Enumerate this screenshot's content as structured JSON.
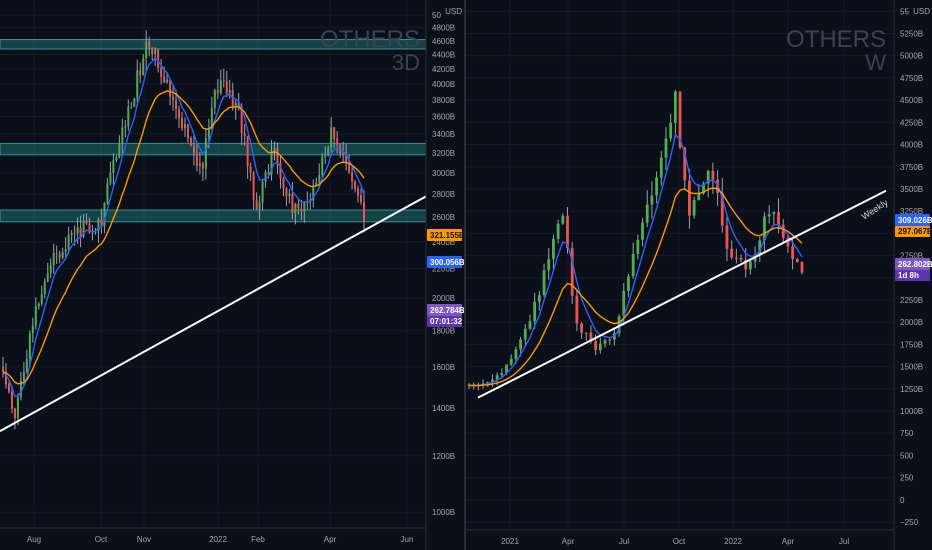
{
  "chart_data": [
    {
      "type": "candlestick",
      "symbol": "OTHERS",
      "interval": "3D",
      "currency": "USD",
      "y_axis_ticks": [
        "1000B",
        "1200B",
        "1400B",
        "1600B",
        "1800B",
        "2000B",
        "2200B",
        "2400B",
        "2600B",
        "2800B",
        "3000B",
        "3200B",
        "3400B",
        "3600B",
        "3800B",
        "4000B",
        "4200B",
        "4400B",
        "4600B",
        "4800B",
        "50"
      ],
      "yscale": "log",
      "ylim": [
        950,
        5050
      ],
      "x_axis_ticks": [
        "Aug",
        "Oct",
        "Nov",
        "2022",
        "Feb",
        "Apr",
        "Jun"
      ],
      "price_labels": {
        "ema_orange": "321.155B",
        "ema_blue": "300.056B",
        "last_price": "262.784B",
        "countdown": "07:01:32"
      },
      "zones": [
        [
          4480,
          4620
        ],
        [
          3180,
          3300
        ],
        [
          2560,
          2660
        ]
      ],
      "trendline": [
        [
          0,
          1300
        ],
        [
          1,
          2780
        ]
      ],
      "colors": {
        "up": "#4caf50",
        "down": "#ef5350",
        "ema_blue": "#2962ff",
        "ema_orange": "#ff9800",
        "zone": "#26a69a",
        "last_price": "#7e57c2"
      }
    },
    {
      "type": "candlestick",
      "symbol": "OTHERS",
      "interval": "W",
      "currency": "USD",
      "y_axis_ticks": [
        "−250",
        "0",
        "250",
        "500",
        "750",
        "1000B",
        "1250B",
        "1500B",
        "1750B",
        "2000B",
        "2250B",
        "2500B",
        "2750B",
        "3000B",
        "3250B",
        "3500B",
        "3750B",
        "4000B",
        "4250B",
        "4500B",
        "4750B",
        "5000B",
        "5250B",
        "55"
      ],
      "yscale": "linear",
      "ylim": [
        -340,
        5560
      ],
      "x_axis_ticks": [
        "2021",
        "Apr",
        "Jul",
        "Oct",
        "2022",
        "Apr",
        "Jul"
      ],
      "annotation": "Weekly",
      "price_labels": {
        "ema_blue": "309.026B",
        "ema_orange": "297.067B",
        "last_price": "262.802B",
        "countdown": "1d 8h"
      },
      "trendline": [
        [
          0.02,
          1150
        ],
        [
          1.0,
          3480
        ]
      ],
      "colors": {
        "up": "#4caf50",
        "down": "#ef5350",
        "ema_blue": "#2962ff",
        "ema_orange": "#ff9800",
        "last_price": "#7e57c2"
      }
    }
  ]
}
